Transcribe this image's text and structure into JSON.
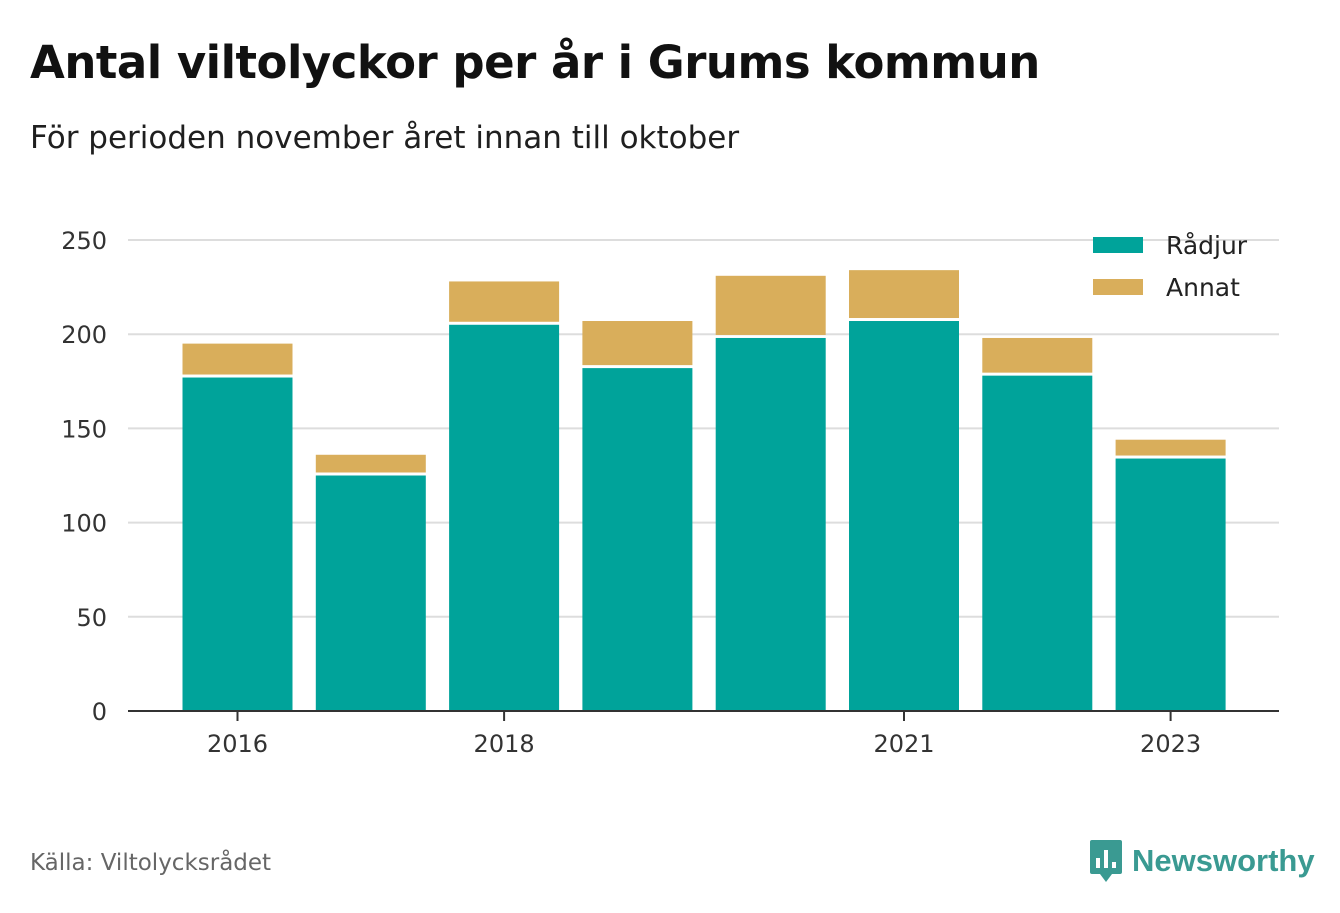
{
  "title": "Antal viltolyckor per år i Grums kommun",
  "subtitle": "För perioden november året innan till oktober",
  "source": "Källa: Viltolycksrådet",
  "brand": {
    "name": "Newsworthy",
    "icon": "newsworthy-logo-icon",
    "color": "#3a9a92"
  },
  "chart_data": {
    "type": "bar",
    "stacked": true,
    "categories": [
      "2016",
      "2017",
      "2018",
      "2019",
      "2020",
      "2021",
      "2022",
      "2023"
    ],
    "x_tick_labels": [
      "2016",
      "2018",
      "2021",
      "2023"
    ],
    "series": [
      {
        "name": "Rådjur",
        "color": "#00a39a",
        "values": [
          177,
          125,
          205,
          182,
          198,
          207,
          178,
          134
        ]
      },
      {
        "name": "Annat",
        "color": "#d9ae5b",
        "values": [
          18,
          11,
          23,
          25,
          33,
          27,
          20,
          10
        ]
      }
    ],
    "y_ticks": [
      0,
      50,
      100,
      150,
      200,
      250
    ],
    "ylim": [
      0,
      250
    ],
    "grid": true,
    "legend_position": "top-right"
  }
}
